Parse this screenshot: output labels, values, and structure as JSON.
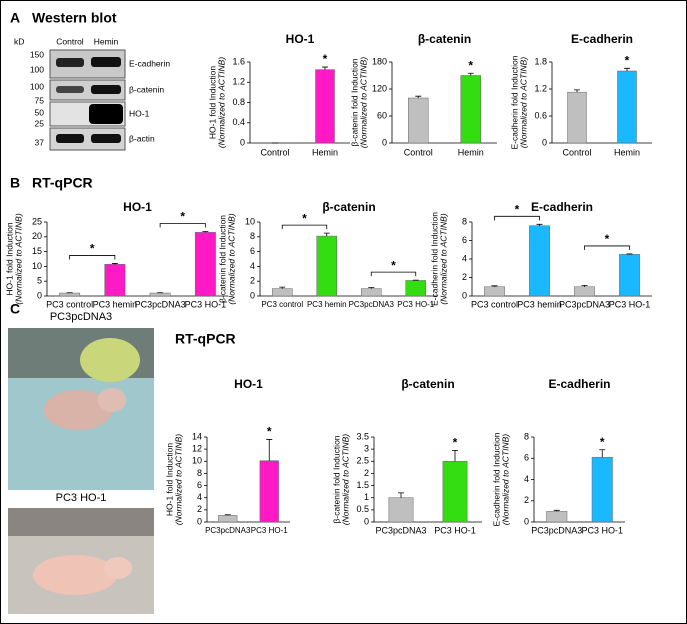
{
  "panel_a": {
    "label": "A",
    "title": "Western blot",
    "kd_label": "kD",
    "kd": [
      "150",
      "100",
      "100",
      "75",
      "50",
      "25",
      "37"
    ],
    "lanes": [
      "Control",
      "Hemin"
    ],
    "bands": [
      "E-cadherin",
      "β-catenin",
      "HO-1",
      "β-actin"
    ]
  },
  "panel_b": {
    "label": "B",
    "title": "RT-qPCR"
  },
  "panel_c": {
    "label": "C",
    "title": "RT-qPCR",
    "photos": [
      "PC3pcDNA3",
      "PC3 HO-1"
    ]
  },
  "chart_data": [
    {
      "type": "bar",
      "title": "HO-1",
      "ylabel": "HO-1 fold Induction",
      "ylabel2": "(Normalized to ACTINB)",
      "categories": [
        "Control",
        "Hemin"
      ],
      "values": [
        0,
        1.45
      ],
      "errors": [
        0,
        0.05
      ],
      "colors": [
        "#bfbfbf",
        "#ff1ac6"
      ],
      "stars": [
        null,
        "*"
      ],
      "ylim": [
        0,
        1.6
      ],
      "yticks": [
        0,
        0.4,
        0.8,
        1.2,
        1.6
      ]
    },
    {
      "type": "bar",
      "title": "β-catenin",
      "ylabel": "β-catenin fold Induction",
      "ylabel2": "(Normalized to ACTINB)",
      "categories": [
        "Control",
        "Hemin"
      ],
      "values": [
        100,
        150
      ],
      "errors": [
        4,
        5
      ],
      "colors": [
        "#bfbfbf",
        "#33dd11"
      ],
      "stars": [
        null,
        "*"
      ],
      "ylim": [
        0,
        180
      ],
      "yticks": [
        0,
        60,
        120,
        180
      ]
    },
    {
      "type": "bar",
      "title": "E-cadherin",
      "ylabel": "E-cadherin fold Induction",
      "ylabel2": "(Normalized to ACTINB)",
      "categories": [
        "Control",
        "Hemin"
      ],
      "values": [
        1.13,
        1.6
      ],
      "errors": [
        0.05,
        0.06
      ],
      "colors": [
        "#bfbfbf",
        "#1ab8ff"
      ],
      "stars": [
        null,
        "*"
      ],
      "ylim": [
        0,
        1.8
      ],
      "yticks": [
        0,
        0.6,
        1.2,
        1.8
      ]
    },
    {
      "type": "bar",
      "title": "HO-1",
      "ylabel": "HO-1 fold Induction",
      "ylabel2": "(Normalized to ACTINB)",
      "categories": [
        "PC3 control",
        "PC3 hemin",
        "PC3pcDNA3",
        "PC3 HO-1"
      ],
      "values": [
        1,
        10.7,
        1,
        21.5
      ],
      "errors": [
        0.1,
        0.3,
        0.1,
        0.3
      ],
      "colors": [
        "#bfbfbf",
        "#ff1ac6",
        "#bfbfbf",
        "#ff1ac6"
      ],
      "significance": [
        {
          "from": 0,
          "to": 1,
          "label": "*"
        },
        {
          "from": 2,
          "to": 3,
          "label": "*"
        }
      ],
      "ylim": [
        0,
        25
      ],
      "yticks": [
        0,
        5,
        10,
        15,
        20,
        25
      ]
    },
    {
      "type": "bar",
      "title": "β-catenin",
      "ylabel": "β-catenin fold Induction",
      "ylabel2": "(Normalized to ACTINB)",
      "categories": [
        "PC3 control",
        "PC3 hemin",
        "PC3pcDNA3",
        "PC3 HO-1"
      ],
      "values": [
        1,
        8.1,
        1,
        2.1
      ],
      "errors": [
        0.2,
        0.4,
        0.15,
        0.05
      ],
      "colors": [
        "#bfbfbf",
        "#33dd11",
        "#bfbfbf",
        "#33dd11"
      ],
      "significance": [
        {
          "from": 0,
          "to": 1,
          "label": "*"
        },
        {
          "from": 2,
          "to": 3,
          "label": "*"
        }
      ],
      "ylim": [
        0,
        10
      ],
      "yticks": [
        0,
        2,
        4,
        6,
        8,
        10
      ]
    },
    {
      "type": "bar",
      "title": "E-cadherin",
      "ylabel": "E-cadherin fold Induction",
      "ylabel2": "(Normalized to ACTINB)",
      "categories": [
        "PC3 control",
        "PC3 hemin",
        "PC3pcDNA3",
        "PC3 HO-1"
      ],
      "values": [
        1,
        7.6,
        1,
        4.5
      ],
      "errors": [
        0.1,
        0.15,
        0.15,
        0.05
      ],
      "colors": [
        "#bfbfbf",
        "#1ab8ff",
        "#bfbfbf",
        "#1ab8ff"
      ],
      "significance": [
        {
          "from": 0,
          "to": 1,
          "label": "*"
        },
        {
          "from": 2,
          "to": 3,
          "label": "*"
        }
      ],
      "ylim": [
        0,
        8
      ],
      "yticks": [
        0,
        2,
        4,
        6,
        8
      ]
    },
    {
      "type": "bar",
      "title": "HO-1",
      "ylabel": "HO-1 fold Induction",
      "ylabel2": "(Normalized to ACTINB)",
      "categories": [
        "PC3pcDNA3",
        "PC3 HO-1"
      ],
      "values": [
        1.1,
        10.1
      ],
      "errors": [
        0.1,
        3.5
      ],
      "colors": [
        "#bfbfbf",
        "#ff1ac6"
      ],
      "stars": [
        null,
        "*"
      ],
      "ylim": [
        0,
        14
      ],
      "yticks": [
        0,
        2,
        4,
        6,
        8,
        10,
        12,
        14
      ]
    },
    {
      "type": "bar",
      "title": "β-catenin",
      "ylabel": "β-catenin fold Induction",
      "ylabel2": "(Normalized to ACTINB)",
      "categories": [
        "PC3pcDNA3",
        "PC3 HO-1"
      ],
      "values": [
        1,
        2.5
      ],
      "errors": [
        0.2,
        0.45
      ],
      "colors": [
        "#bfbfbf",
        "#33dd11"
      ],
      "stars": [
        null,
        "*"
      ],
      "ylim": [
        0,
        3.5
      ],
      "yticks": [
        0,
        0.5,
        1,
        1.5,
        2,
        2.5,
        3,
        3.5
      ]
    },
    {
      "type": "bar",
      "title": "E-cadherin",
      "ylabel": "E-cadherin fold Induction",
      "ylabel2": "(Normalized to ACTINB)",
      "categories": [
        "PC3pcDNA3",
        "PC3 HO-1"
      ],
      "values": [
        1,
        6.1
      ],
      "errors": [
        0.1,
        0.7
      ],
      "colors": [
        "#bfbfbf",
        "#1ab8ff"
      ],
      "stars": [
        null,
        "*"
      ],
      "ylim": [
        0,
        8
      ],
      "yticks": [
        0,
        2,
        4,
        6,
        8
      ]
    }
  ]
}
